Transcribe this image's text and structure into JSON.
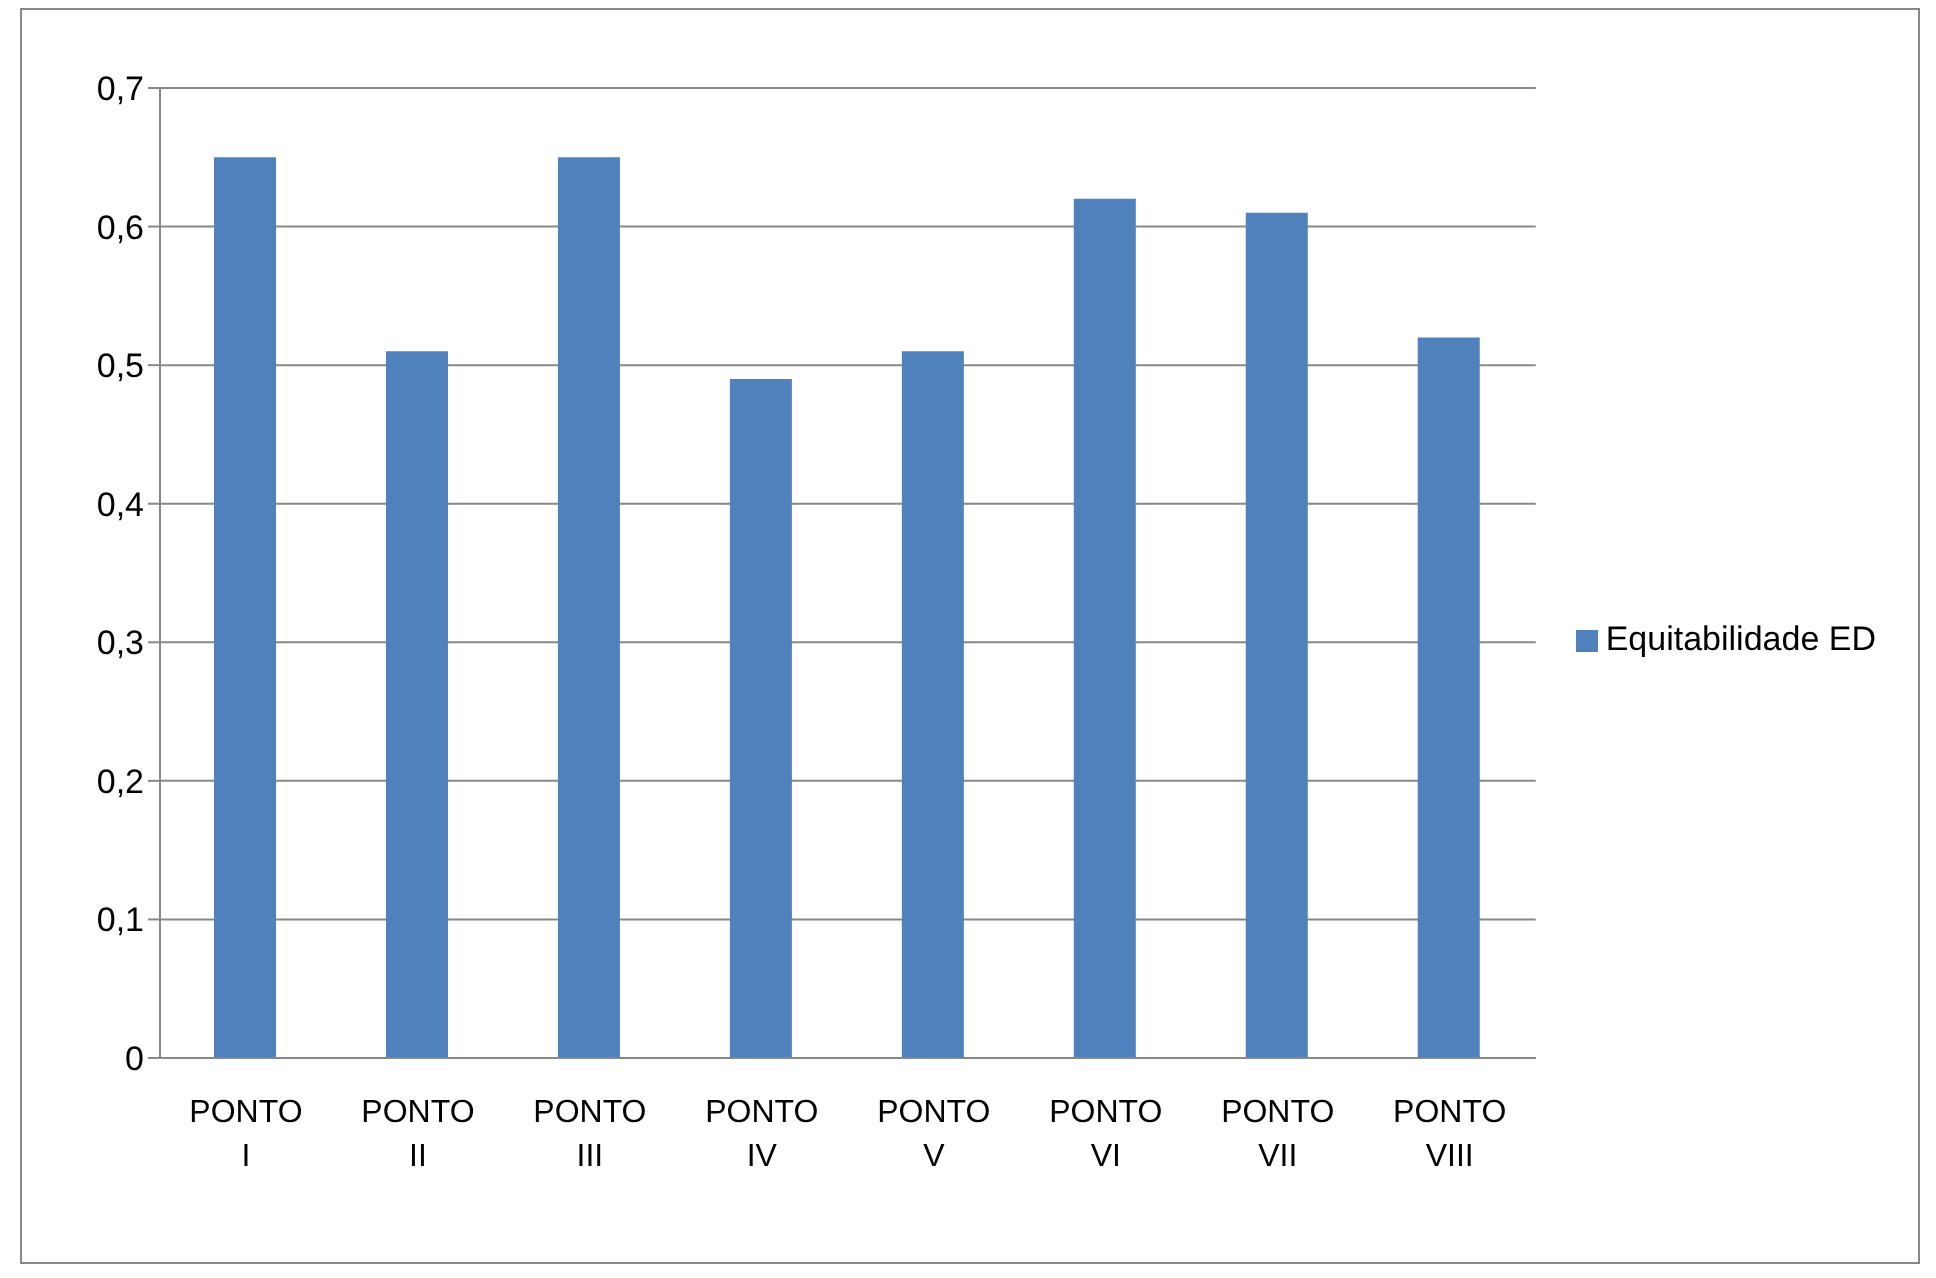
{
  "chart_data": {
    "type": "bar",
    "categories": [
      "PONTO I",
      "PONTO II",
      "PONTO III",
      "PONTO IV",
      "PONTO V",
      "PONTO VI",
      "PONTO VII",
      "PONTO VIII"
    ],
    "series": [
      {
        "name": "Equitabilidade ED",
        "color": "#4f81bd",
        "values": [
          0.65,
          0.51,
          0.65,
          0.49,
          0.51,
          0.62,
          0.61,
          0.52
        ]
      }
    ],
    "ylim": [
      0,
      0.7
    ],
    "yticks": [
      {
        "value": 0,
        "label": "0"
      },
      {
        "value": 0.1,
        "label": "0,1"
      },
      {
        "value": 0.2,
        "label": "0,2"
      },
      {
        "value": 0.3,
        "label": "0,3"
      },
      {
        "value": 0.4,
        "label": "0,4"
      },
      {
        "value": 0.5,
        "label": "0,5"
      },
      {
        "value": 0.6,
        "label": "0,6"
      },
      {
        "value": 0.7,
        "label": "0,7"
      }
    ],
    "grid": "y",
    "legend": "right"
  }
}
